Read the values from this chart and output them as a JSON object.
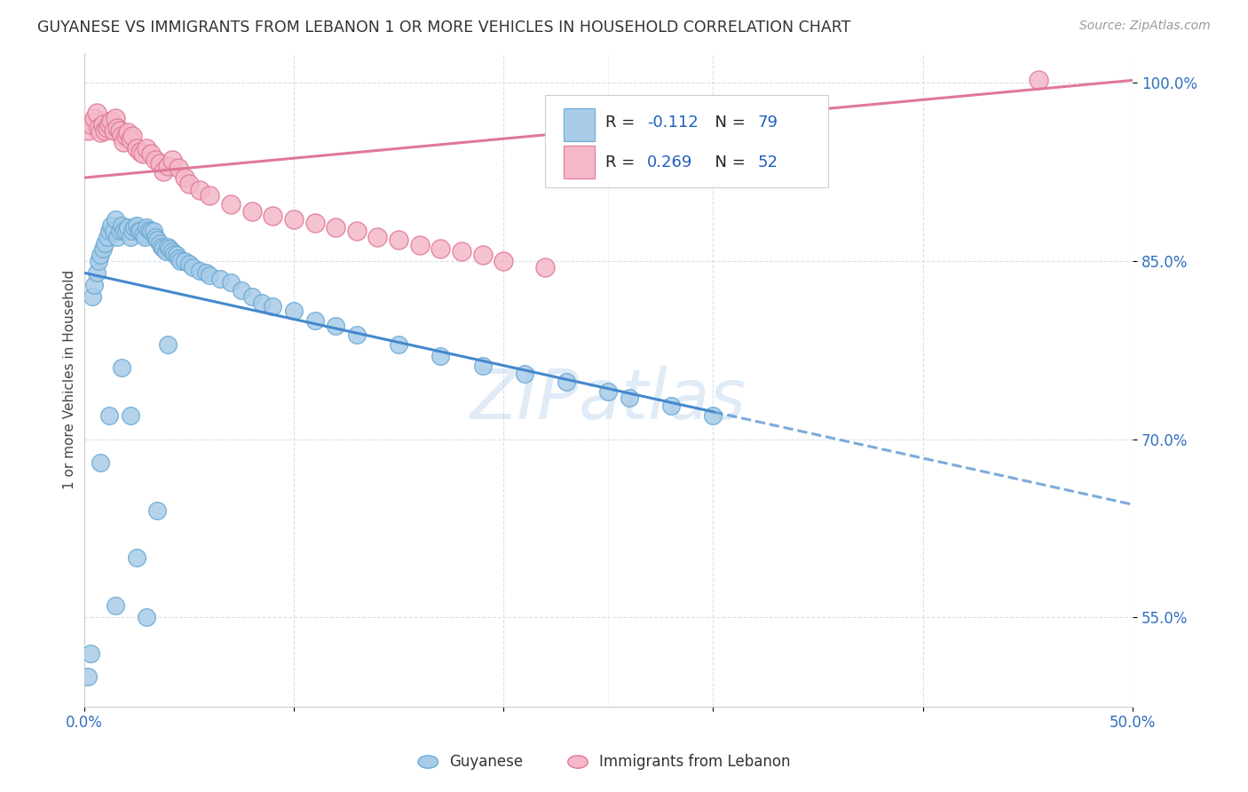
{
  "title": "GUYANESE VS IMMIGRANTS FROM LEBANON 1 OR MORE VEHICLES IN HOUSEHOLD CORRELATION CHART",
  "source": "Source: ZipAtlas.com",
  "ylabel": "1 or more Vehicles in Household",
  "xlim": [
    0.0,
    0.5
  ],
  "ylim": [
    0.475,
    1.025
  ],
  "x_tick_positions": [
    0.0,
    0.1,
    0.2,
    0.3,
    0.4,
    0.5
  ],
  "x_tick_labels": [
    "0.0%",
    "",
    "",
    "",
    "",
    "50.0%"
  ],
  "y_tick_positions": [
    0.55,
    0.7,
    0.85,
    1.0
  ],
  "y_tick_labels": [
    "55.0%",
    "70.0%",
    "85.0%",
    "100.0%"
  ],
  "guyanese_R": -0.112,
  "guyanese_N": 79,
  "lebanon_R": 0.269,
  "lebanon_N": 52,
  "blue_dot_color": "#a8cce8",
  "blue_dot_edge": "#6aaad4",
  "blue_line_color": "#4488cc",
  "pink_dot_color": "#f4b8c8",
  "pink_dot_edge": "#e07898",
  "pink_line_color": "#e07898",
  "watermark": "ZIPatlas",
  "blue_x": [
    0.002,
    0.003,
    0.004,
    0.005,
    0.006,
    0.007,
    0.008,
    0.009,
    0.01,
    0.011,
    0.012,
    0.013,
    0.014,
    0.015,
    0.016,
    0.017,
    0.018,
    0.019,
    0.02,
    0.021,
    0.022,
    0.023,
    0.024,
    0.025,
    0.026,
    0.027,
    0.028,
    0.029,
    0.03,
    0.031,
    0.032,
    0.033,
    0.034,
    0.035,
    0.036,
    0.037,
    0.038,
    0.039,
    0.04,
    0.041,
    0.042,
    0.043,
    0.044,
    0.045,
    0.046,
    0.048,
    0.05,
    0.052,
    0.055,
    0.058,
    0.06,
    0.065,
    0.07,
    0.075,
    0.08,
    0.085,
    0.09,
    0.1,
    0.11,
    0.12,
    0.13,
    0.15,
    0.17,
    0.19,
    0.21,
    0.23,
    0.25,
    0.26,
    0.28,
    0.3,
    0.015,
    0.025,
    0.035,
    0.008,
    0.012,
    0.018,
    0.022,
    0.03,
    0.04
  ],
  "blue_y": [
    0.5,
    0.52,
    0.82,
    0.83,
    0.84,
    0.85,
    0.855,
    0.86,
    0.865,
    0.87,
    0.875,
    0.88,
    0.875,
    0.885,
    0.87,
    0.875,
    0.88,
    0.875,
    0.875,
    0.878,
    0.87,
    0.875,
    0.878,
    0.88,
    0.875,
    0.875,
    0.872,
    0.87,
    0.878,
    0.876,
    0.875,
    0.875,
    0.87,
    0.868,
    0.865,
    0.862,
    0.86,
    0.858,
    0.862,
    0.86,
    0.858,
    0.856,
    0.855,
    0.852,
    0.85,
    0.85,
    0.848,
    0.845,
    0.842,
    0.84,
    0.838,
    0.835,
    0.832,
    0.825,
    0.82,
    0.815,
    0.812,
    0.808,
    0.8,
    0.795,
    0.788,
    0.78,
    0.77,
    0.762,
    0.755,
    0.748,
    0.74,
    0.735,
    0.728,
    0.72,
    0.56,
    0.6,
    0.64,
    0.68,
    0.72,
    0.76,
    0.72,
    0.55,
    0.78
  ],
  "pink_x": [
    0.002,
    0.003,
    0.005,
    0.006,
    0.007,
    0.008,
    0.009,
    0.01,
    0.011,
    0.012,
    0.013,
    0.014,
    0.015,
    0.016,
    0.017,
    0.018,
    0.019,
    0.02,
    0.021,
    0.022,
    0.023,
    0.025,
    0.027,
    0.028,
    0.03,
    0.032,
    0.034,
    0.036,
    0.038,
    0.04,
    0.042,
    0.045,
    0.048,
    0.05,
    0.055,
    0.06,
    0.07,
    0.08,
    0.09,
    0.1,
    0.11,
    0.12,
    0.13,
    0.14,
    0.15,
    0.16,
    0.17,
    0.18,
    0.19,
    0.2,
    0.22,
    0.455
  ],
  "pink_y": [
    0.96,
    0.965,
    0.97,
    0.975,
    0.962,
    0.958,
    0.965,
    0.96,
    0.962,
    0.965,
    0.968,
    0.96,
    0.97,
    0.962,
    0.96,
    0.955,
    0.95,
    0.955,
    0.958,
    0.952,
    0.955,
    0.945,
    0.942,
    0.94,
    0.945,
    0.94,
    0.935,
    0.932,
    0.925,
    0.93,
    0.935,
    0.928,
    0.92,
    0.915,
    0.91,
    0.905,
    0.898,
    0.892,
    0.888,
    0.885,
    0.882,
    0.878,
    0.875,
    0.87,
    0.868,
    0.863,
    0.86,
    0.858,
    0.855,
    0.85,
    0.845,
    1.002
  ]
}
